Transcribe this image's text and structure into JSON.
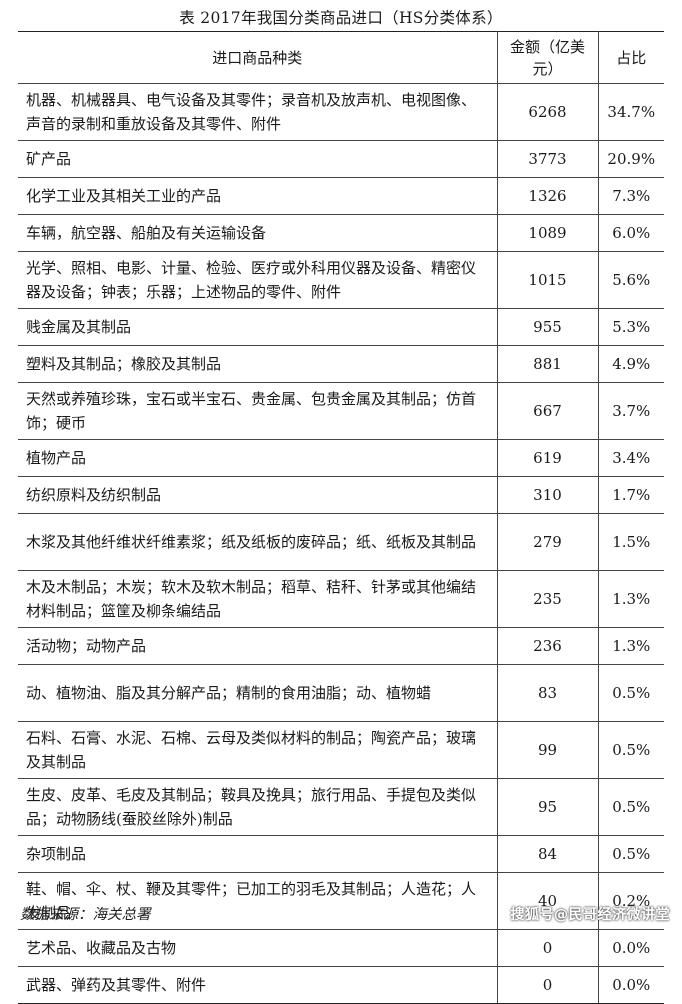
{
  "title": "表 2017年我国分类商品进口（HS分类体系）",
  "headers": {
    "category": "进口商品种类",
    "amount": "金额（亿美元）",
    "share": "占比"
  },
  "rows": [
    {
      "category": "机器、机械器具、电气设备及其零件；录音机及放声机、电视图像、声音的录制和重放设备及其零件、附件",
      "amount": "6268",
      "share": "34.7%"
    },
    {
      "category": "矿产品",
      "amount": "3773",
      "share": "20.9%"
    },
    {
      "category": "化学工业及其相关工业的产品",
      "amount": "1326",
      "share": "7.3%"
    },
    {
      "category": "车辆，航空器、船舶及有关运输设备",
      "amount": "1089",
      "share": "6.0%"
    },
    {
      "category": "光学、照相、电影、计量、检验、医疗或外科用仪器及设备、精密仪器及设备；钟表；乐器；上述物品的零件、附件",
      "amount": "1015",
      "share": "5.6%"
    },
    {
      "category": "贱金属及其制品",
      "amount": "955",
      "share": "5.3%"
    },
    {
      "category": "塑料及其制品；橡胶及其制品",
      "amount": "881",
      "share": "4.9%"
    },
    {
      "category": "天然或养殖珍珠，宝石或半宝石、贵金属、包贵金属及其制品；仿首饰；硬币",
      "amount": "667",
      "share": "3.7%"
    },
    {
      "category": "植物产品",
      "amount": "619",
      "share": "3.4%"
    },
    {
      "category": "纺织原料及纺织制品",
      "amount": "310",
      "share": "1.7%"
    },
    {
      "category": "木浆及其他纤维状纤维素浆；纸及纸板的废碎品；纸、纸板及其制品",
      "amount": "279",
      "share": "1.5%"
    },
    {
      "category": "木及木制品；木炭；软木及软木制品；稻草、秸秆、针茅或其他编结材料制品；篮筐及柳条编结品",
      "amount": "235",
      "share": "1.3%"
    },
    {
      "category": "活动物；动物产品",
      "amount": "236",
      "share": "1.3%"
    },
    {
      "category": "动、植物油、脂及其分解产品；精制的食用油脂；动、植物蜡",
      "amount": "83",
      "share": "0.5%"
    },
    {
      "category": "石料、石膏、水泥、石棉、云母及类似材料的制品；陶瓷产品；玻璃及其制品",
      "amount": "99",
      "share": "0.5%"
    },
    {
      "category": "生皮、皮革、毛皮及其制品；鞍具及挽具；旅行用品、手提包及类似品；动物肠线(蚕胶丝除外)制品",
      "amount": "95",
      "share": "0.5%"
    },
    {
      "category": "杂项制品",
      "amount": "84",
      "share": "0.5%"
    },
    {
      "category": "鞋、帽、伞、杖、鞭及其零件；已加工的羽毛及其制品；人造花；人发制品",
      "amount": "40",
      "share": "0.2%"
    },
    {
      "category": "艺术品、收藏品及古物",
      "amount": "0",
      "share": "0.0%"
    },
    {
      "category": "武器、弹药及其零件、附件",
      "amount": "0",
      "share": "0.0%"
    }
  ],
  "source": "数据来源：海关总署",
  "watermark": "搜狐号@民哥经济微讲堂"
}
